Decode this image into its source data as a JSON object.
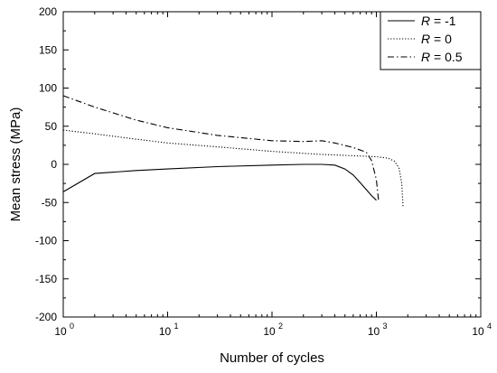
{
  "chart_data": {
    "type": "line",
    "xlabel": "Number of cycles",
    "ylabel": "Mean stress (MPa)",
    "x_scale": "log",
    "xlim": [
      1,
      10000
    ],
    "ylim": [
      -200,
      200
    ],
    "x_ticks": [
      {
        "value": 1,
        "base": "10",
        "exp": "0"
      },
      {
        "value": 10,
        "base": "10",
        "exp": "1"
      },
      {
        "value": 100,
        "base": "10",
        "exp": "2"
      },
      {
        "value": 1000,
        "base": "10",
        "exp": "3"
      },
      {
        "value": 10000,
        "base": "10",
        "exp": "4"
      }
    ],
    "y_ticks": [
      200,
      150,
      100,
      50,
      0,
      -50,
      -100,
      -150,
      -200
    ],
    "grid": false,
    "legend_position": "top-right",
    "series": [
      {
        "name": "R = -1",
        "name_italic": "R",
        "name_rest": " = -1",
        "style": "solid",
        "points": [
          [
            1,
            -36
          ],
          [
            2,
            -12
          ],
          [
            5,
            -8
          ],
          [
            10,
            -6
          ],
          [
            30,
            -3
          ],
          [
            100,
            -1
          ],
          [
            200,
            0
          ],
          [
            300,
            0
          ],
          [
            400,
            -1
          ],
          [
            500,
            -6
          ],
          [
            600,
            -14
          ],
          [
            700,
            -24
          ],
          [
            800,
            -33
          ],
          [
            900,
            -41
          ],
          [
            1000,
            -47
          ]
        ]
      },
      {
        "name": "R = 0",
        "name_italic": "R",
        "name_rest": " = 0",
        "style": "dotted",
        "points": [
          [
            1,
            45
          ],
          [
            2,
            40
          ],
          [
            5,
            33
          ],
          [
            10,
            28
          ],
          [
            30,
            23
          ],
          [
            100,
            17
          ],
          [
            300,
            13
          ],
          [
            1000,
            10
          ],
          [
            1300,
            8
          ],
          [
            1500,
            4
          ],
          [
            1650,
            -5
          ],
          [
            1750,
            -25
          ],
          [
            1800,
            -55
          ]
        ]
      },
      {
        "name": "R = 0.5",
        "name_italic": "R",
        "name_rest": " = 0.5",
        "style": "dashdot",
        "points": [
          [
            1,
            90
          ],
          [
            2,
            75
          ],
          [
            5,
            58
          ],
          [
            10,
            48
          ],
          [
            30,
            38
          ],
          [
            100,
            31
          ],
          [
            200,
            30
          ],
          [
            300,
            31
          ],
          [
            400,
            28
          ],
          [
            600,
            22
          ],
          [
            800,
            16
          ],
          [
            900,
            5
          ],
          [
            1000,
            -20
          ],
          [
            1050,
            -47
          ]
        ]
      }
    ]
  }
}
